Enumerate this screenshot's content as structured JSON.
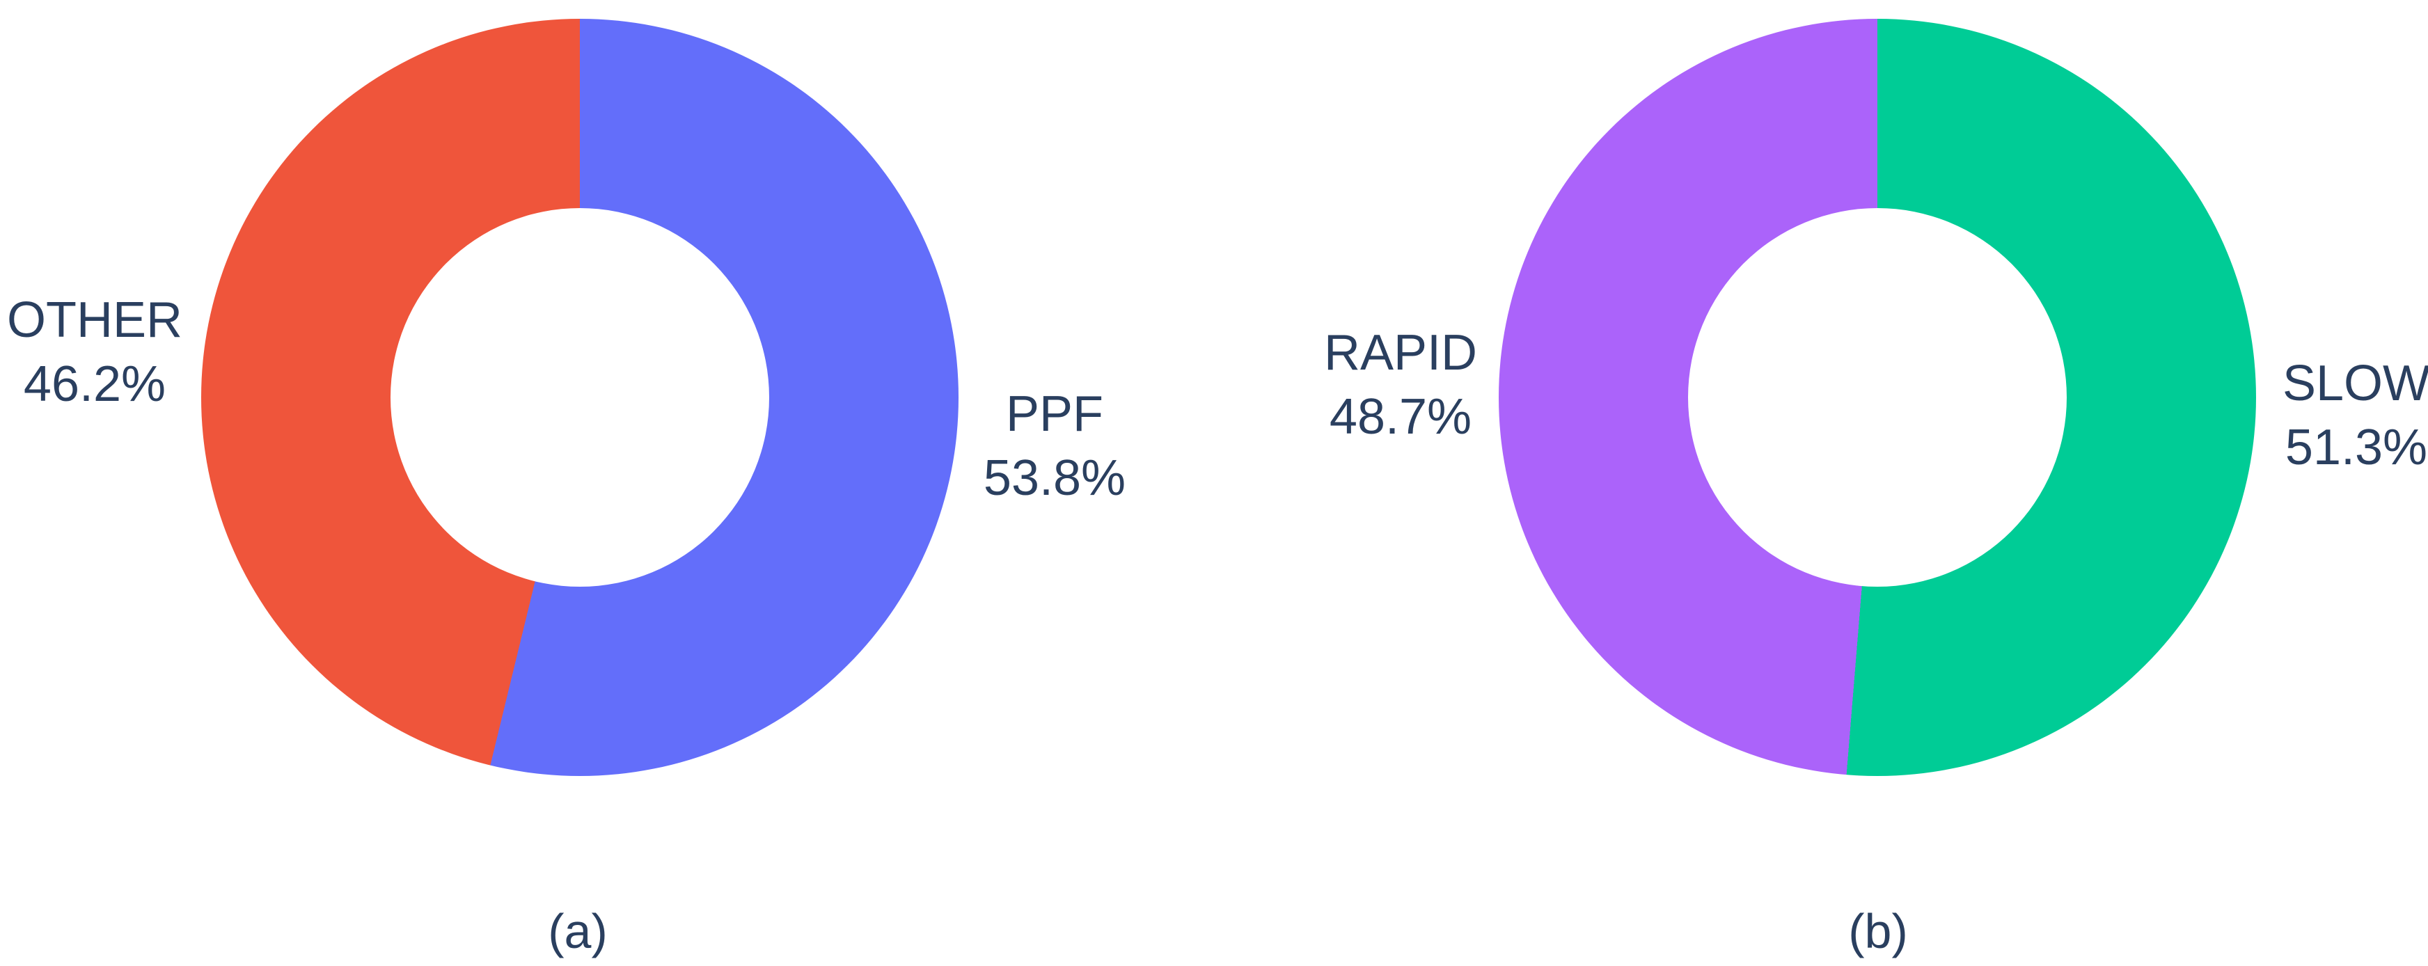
{
  "page": {
    "background": "#FFFFFF",
    "text_color": "#2A3F5F"
  },
  "charts": [
    {
      "caption": "(a)",
      "slices": [
        {
          "name": "PPF",
          "pct": "53.8%",
          "color": "#636EFA",
          "side": "right"
        },
        {
          "name": "OTHER",
          "pct": "46.2%",
          "color": "#EF553B",
          "side": "left"
        }
      ]
    },
    {
      "caption": "(b)",
      "slices": [
        {
          "name": "SLOW",
          "pct": "51.3%",
          "color": "#00CC96",
          "side": "right"
        },
        {
          "name": "RAPID",
          "pct": "48.7%",
          "color": "#AB63FA",
          "side": "left"
        }
      ]
    }
  ],
  "chart_data": [
    {
      "type": "pie",
      "title": "(a)",
      "labels": [
        "PPF",
        "OTHER"
      ],
      "values": [
        53.8,
        46.2
      ],
      "colors": [
        "#636EFA",
        "#EF553B"
      ],
      "hole": 0.5,
      "start_angle_deg": 0,
      "direction": "clockwise",
      "text_labels": [
        "PPF 53.8%",
        "OTHER 46.2%"
      ],
      "label_position": "outside",
      "legend": "none"
    },
    {
      "type": "pie",
      "title": "(b)",
      "labels": [
        "SLOW",
        "RAPID"
      ],
      "values": [
        51.3,
        48.7
      ],
      "colors": [
        "#00CC96",
        "#AB63FA"
      ],
      "hole": 0.5,
      "start_angle_deg": 0,
      "direction": "clockwise",
      "text_labels": [
        "SLOW 51.3%",
        "RAPID 48.7%"
      ],
      "label_position": "outside",
      "legend": "none"
    }
  ]
}
